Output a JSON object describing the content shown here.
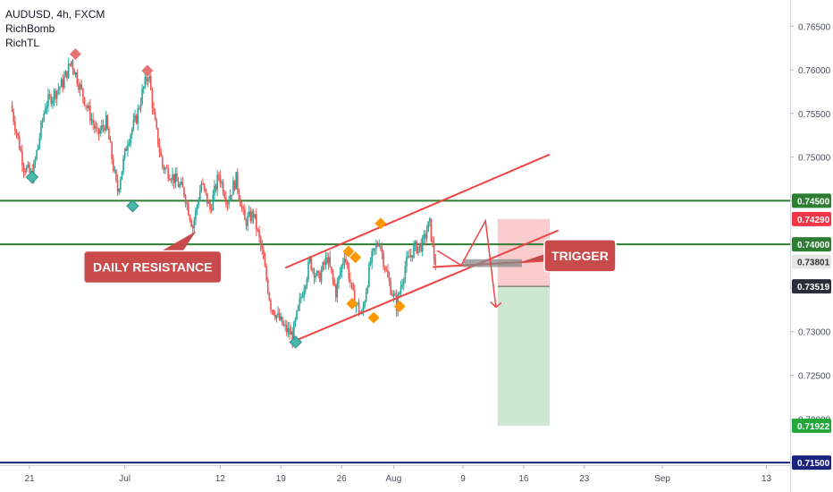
{
  "header": {
    "symbol_line": "AUDUSD, 4h, FXCM",
    "indicators": [
      "RichBomb",
      "RichTL"
    ]
  },
  "colors": {
    "up": "#26a69a",
    "down": "#ef5350",
    "level": "#2e7d32",
    "channel": "#ef4444",
    "stop_zone": "#f8c4c4",
    "target_zone": "#c8e6c9",
    "callout_bg": "#c94a4a",
    "diamond_orange": "#ff9800",
    "diamond_teal": "#4db6ac",
    "diamond_red": "#e57373",
    "bottom_line": "#1a237e"
  },
  "chart_data": {
    "type": "candlestick",
    "title": "AUDUSD, 4h, FXCM",
    "y_axis": {
      "range": [
        0.7147,
        0.768
      ],
      "ticks": [
        "0.76500",
        "0.76000",
        "0.75500",
        "0.75000",
        "0.74500",
        "0.74000",
        "0.73500",
        "0.73000",
        "0.72500",
        "0.72000",
        "0.71500"
      ]
    },
    "x_axis": {
      "ticks": [
        {
          "label": "21",
          "day": -10
        },
        {
          "label": "Jul",
          "day": 1
        },
        {
          "label": "12",
          "day": 12
        },
        {
          "label": "19",
          "day": 19
        },
        {
          "label": "26",
          "day": 26
        },
        {
          "label": "Aug",
          "day": 32
        },
        {
          "label": "9",
          "day": 40
        },
        {
          "label": "16",
          "day": 47
        },
        {
          "label": "23",
          "day": 54
        },
        {
          "label": "Sep",
          "day": 63
        },
        {
          "label": "13",
          "day": 75
        }
      ]
    },
    "price_labels": [
      {
        "value": 0.745,
        "text": "0.74500",
        "style": "level"
      },
      {
        "value": 0.7429,
        "text": "0.74290",
        "style": "last"
      },
      {
        "value": 0.74,
        "text": "0.74000",
        "style": "level"
      },
      {
        "value": 0.73801,
        "text": "0.73801",
        "style": "gray"
      },
      {
        "value": 0.73519,
        "text": "0.73519",
        "style": "dark"
      },
      {
        "value": 0.71922,
        "text": "0.71922",
        "style": "target"
      },
      {
        "value": 0.715,
        "text": "0.71500",
        "style": "navy"
      }
    ],
    "horizontal_levels": [
      0.745,
      0.74
    ],
    "bottom_line": 0.715,
    "swing_path": [
      {
        "day": -12,
        "price": 0.756
      },
      {
        "day": -10.5,
        "price": 0.749
      },
      {
        "day": -9.5,
        "price": 0.7478
      },
      {
        "day": -8,
        "price": 0.756
      },
      {
        "day": -6,
        "price": 0.7585
      },
      {
        "day": -5,
        "price": 0.761
      },
      {
        "day": -4,
        "price": 0.758
      },
      {
        "day": -2,
        "price": 0.7525
      },
      {
        "day": -1,
        "price": 0.754
      },
      {
        "day": 0.3,
        "price": 0.746
      },
      {
        "day": 1.5,
        "price": 0.752
      },
      {
        "day": 2.5,
        "price": 0.7545
      },
      {
        "day": 3.2,
        "price": 0.7575
      },
      {
        "day": 3.9,
        "price": 0.7597
      },
      {
        "day": 4.6,
        "price": 0.754
      },
      {
        "day": 5.5,
        "price": 0.749
      },
      {
        "day": 6.5,
        "price": 0.748
      },
      {
        "day": 8,
        "price": 0.746
      },
      {
        "day": 9,
        "price": 0.742
      },
      {
        "day": 10,
        "price": 0.747
      },
      {
        "day": 11,
        "price": 0.744
      },
      {
        "day": 12,
        "price": 0.748
      },
      {
        "day": 13,
        "price": 0.745
      },
      {
        "day": 14,
        "price": 0.7475
      },
      {
        "day": 15,
        "price": 0.7425
      },
      {
        "day": 16,
        "price": 0.7435
      },
      {
        "day": 17,
        "price": 0.739
      },
      {
        "day": 18,
        "price": 0.733
      },
      {
        "day": 19.5,
        "price": 0.7305
      },
      {
        "day": 20.5,
        "price": 0.7295
      },
      {
        "day": 21.5,
        "price": 0.734
      },
      {
        "day": 22.5,
        "price": 0.738
      },
      {
        "day": 23.5,
        "price": 0.736
      },
      {
        "day": 24.5,
        "price": 0.7385
      },
      {
        "day": 25.5,
        "price": 0.7345
      },
      {
        "day": 26.5,
        "price": 0.739
      },
      {
        "day": 27.5,
        "price": 0.734
      },
      {
        "day": 28.5,
        "price": 0.7318
      },
      {
        "day": 29.5,
        "price": 0.738
      },
      {
        "day": 30.5,
        "price": 0.7405
      },
      {
        "day": 31.5,
        "price": 0.736
      },
      {
        "day": 32.5,
        "price": 0.733
      },
      {
        "day": 33.5,
        "price": 0.7375
      },
      {
        "day": 34.5,
        "price": 0.7395
      },
      {
        "day": 35.5,
        "price": 0.74
      },
      {
        "day": 36.3,
        "price": 0.7425
      },
      {
        "day": 36.9,
        "price": 0.738
      }
    ],
    "channel_lines": [
      {
        "from": {
          "day": 19.5,
          "price": 0.7373
        },
        "to": {
          "day": 50,
          "price": 0.7503
        }
      },
      {
        "from": {
          "day": 20.5,
          "price": 0.7289
        },
        "to": {
          "day": 51,
          "price": 0.7416
        }
      }
    ],
    "neckline_line": {
      "from": {
        "day": 36.5,
        "price": 0.7374
      },
      "to": {
        "day": 51,
        "price": 0.7382
      }
    },
    "projection_path": [
      {
        "day": 37,
        "price": 0.7393
      },
      {
        "day": 39.8,
        "price": 0.7376
      },
      {
        "day": 42.6,
        "price": 0.7427
      },
      {
        "day": 43.8,
        "price": 0.7328
      }
    ],
    "trigger_box": {
      "day_start": 40,
      "day_end": 46.8,
      "price_top": 0.7383,
      "price_bottom": 0.7374
    },
    "position": {
      "day_start": 44,
      "day_end": 50,
      "stop": 0.7429,
      "entry": 0.73519,
      "target": 0.71922
    },
    "diamonds": [
      {
        "day": -4.7,
        "price": 0.7618,
        "color": "red",
        "dir": "up"
      },
      {
        "day": 3.6,
        "price": 0.7599,
        "color": "red",
        "dir": "up"
      },
      {
        "day": -9.7,
        "price": 0.7477,
        "color": "teal",
        "dir": "down"
      },
      {
        "day": 1.9,
        "price": 0.7444,
        "color": "teal",
        "dir": "down"
      },
      {
        "day": 20.7,
        "price": 0.7288,
        "color": "teal",
        "dir": "down"
      },
      {
        "day": 26.8,
        "price": 0.7392,
        "color": "orange",
        "dir": "up"
      },
      {
        "day": 27.6,
        "price": 0.7385,
        "color": "orange",
        "dir": "up"
      },
      {
        "day": 30.5,
        "price": 0.7424,
        "color": "orange",
        "dir": "up"
      },
      {
        "day": 27.2,
        "price": 0.7332,
        "color": "orange",
        "dir": "down"
      },
      {
        "day": 29.7,
        "price": 0.7316,
        "color": "orange",
        "dir": "down"
      },
      {
        "day": 32.7,
        "price": 0.7329,
        "color": "orange",
        "dir": "down"
      }
    ],
    "annotations": [
      {
        "text": "DAILY RESISTANCE",
        "day": 4.2,
        "price": 0.7374,
        "pointer": {
          "day": 9.2,
          "price": 0.7415
        }
      },
      {
        "text": "TRIGGER",
        "day": 53.5,
        "price": 0.7387,
        "pointer": {
          "day": 46.5,
          "price": 0.7379
        }
      }
    ]
  }
}
